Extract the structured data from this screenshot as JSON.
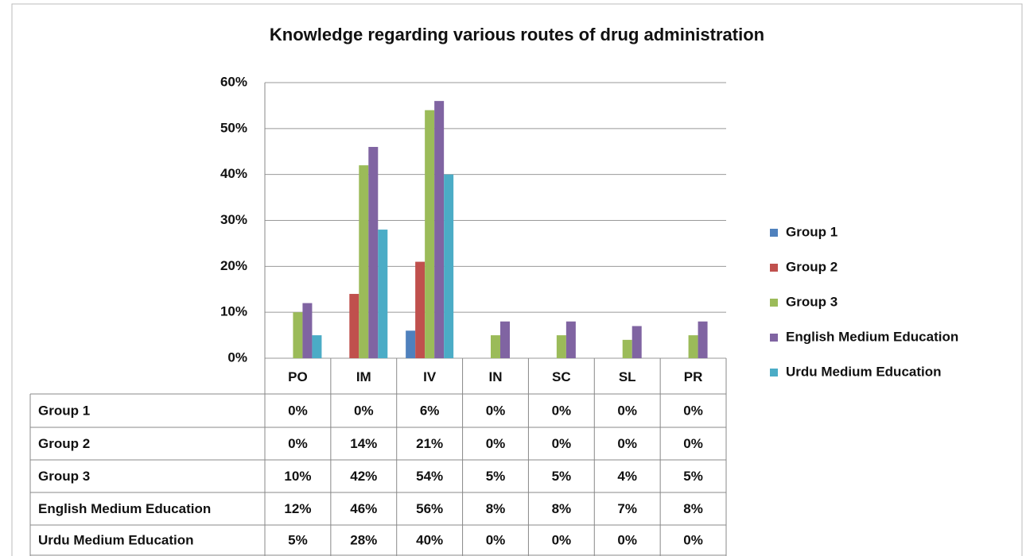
{
  "chart_data": {
    "type": "bar",
    "title": "Knowledge regarding various routes of drug administration",
    "categories": [
      "PO",
      "IM",
      "IV",
      "IN",
      "SC",
      "SL",
      "PR"
    ],
    "series": [
      {
        "name": "Group 1",
        "color": "#4f81bd",
        "values": [
          0,
          0,
          6,
          0,
          0,
          0,
          0
        ],
        "value_labels": [
          "0%",
          "0%",
          "6%",
          "0%",
          "0%",
          "0%",
          "0%"
        ]
      },
      {
        "name": "Group 2",
        "color": "#c0504d",
        "values": [
          0,
          14,
          21,
          0,
          0,
          0,
          0
        ],
        "value_labels": [
          "0%",
          "14%",
          "21%",
          "0%",
          "0%",
          "0%",
          "0%"
        ]
      },
      {
        "name": "Group 3",
        "color": "#9bbb59",
        "values": [
          10,
          42,
          54,
          5,
          5,
          4,
          5
        ],
        "value_labels": [
          "10%",
          "42%",
          "54%",
          "5%",
          "5%",
          "4%",
          "5%"
        ]
      },
      {
        "name": "English Medium Education",
        "color": "#8064a2",
        "values": [
          12,
          46,
          56,
          8,
          8,
          7,
          8
        ],
        "value_labels": [
          "12%",
          "46%",
          "56%",
          "8%",
          "8%",
          "7%",
          "8%"
        ]
      },
      {
        "name": "Urdu Medium Education",
        "color": "#4bacc6",
        "values": [
          5,
          28,
          40,
          0,
          0,
          0,
          0
        ],
        "value_labels": [
          "5%",
          "28%",
          "40%",
          "0%",
          "0%",
          "0%",
          "0%"
        ]
      }
    ],
    "ylim": [
      0,
      60
    ],
    "yticks": [
      {
        "value": 0,
        "label": "0%"
      },
      {
        "value": 10,
        "label": "10%"
      },
      {
        "value": 20,
        "label": "20%"
      },
      {
        "value": 30,
        "label": "30%"
      },
      {
        "value": 40,
        "label": "40%"
      },
      {
        "value": 50,
        "label": "50%"
      },
      {
        "value": 60,
        "label": "60%"
      }
    ],
    "grid": true,
    "legend": "right"
  }
}
